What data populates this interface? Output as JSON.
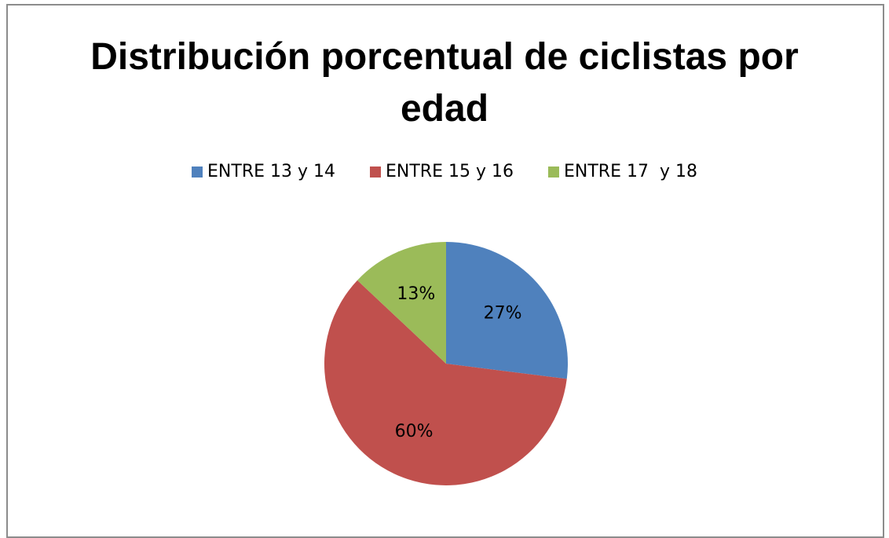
{
  "chart_data": {
    "type": "pie",
    "title": "Distribución porcentual de ciclistas por edad",
    "categories": [
      "ENTRE 13 y 14",
      "ENTRE 15 y 16",
      "ENTRE 17  y 18"
    ],
    "values": [
      27,
      60,
      13
    ],
    "value_labels": [
      "27%",
      "60%",
      "13%"
    ],
    "colors": [
      "#4f81bd",
      "#c0504d",
      "#9bbb59"
    ],
    "legend": "top"
  }
}
